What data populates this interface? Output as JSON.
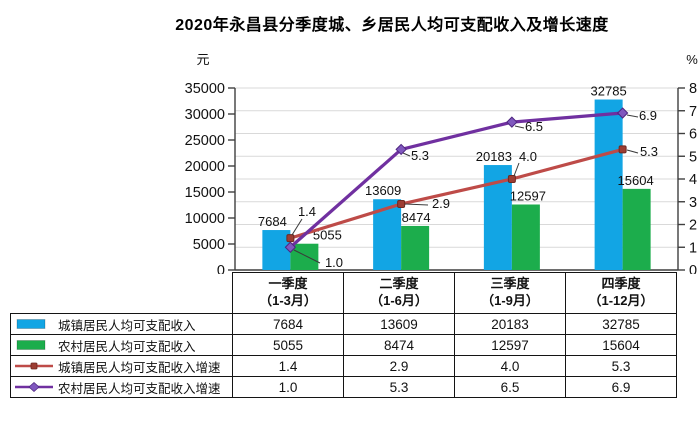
{
  "title": "2020年永昌县分季度城、乡居民人均可支配收入及增长速度",
  "chart_data": {
    "type": "bar+line",
    "title": "2020年永昌县分季度城、乡居民人均可支配收入及增长速度",
    "categories": [
      "一季度",
      "二季度",
      "三季度",
      "四季度"
    ],
    "category_sublabels": [
      "（1-3月）",
      "（1-6月）",
      "（1-9月）",
      "（1-12月）"
    ],
    "left_axis": {
      "unit": "元",
      "min": 0,
      "max": 35000,
      "step": 5000
    },
    "right_axis": {
      "unit": "%",
      "min": 0,
      "max": 8,
      "step": 1
    },
    "grid": "horizontal-right-axis-steps",
    "legend_position": "table-below-chart",
    "series": [
      {
        "name": "城镇居民人均可支配收入",
        "type": "bar",
        "axis": "left",
        "color": "#12A5E4",
        "values": [
          7684,
          13609,
          20183,
          32785
        ],
        "labels": [
          "7684",
          "13609",
          "20183",
          "32785"
        ]
      },
      {
        "name": "农村居民人均可支配收入",
        "type": "bar",
        "axis": "left",
        "color": "#1CAD4C",
        "values": [
          5055,
          8474,
          12597,
          15604
        ],
        "labels": [
          "5055",
          "8474",
          "12597",
          "15604"
        ]
      },
      {
        "name": "城镇居民人均可支配收入增速",
        "type": "line",
        "axis": "right",
        "color": "#BE4B48",
        "marker": "square",
        "marker_color": "#9C3D33",
        "values": [
          1.4,
          2.9,
          4.0,
          5.3
        ],
        "labels": [
          "1.4",
          "2.9",
          "4.0",
          "5.3"
        ]
      },
      {
        "name": "农村居民人均可支配收入增速",
        "type": "line",
        "axis": "right",
        "color": "#7030A0",
        "marker": "diamond",
        "marker_color": "#8058BE",
        "values": [
          1.0,
          5.3,
          6.5,
          6.9
        ],
        "labels": [
          "1.0",
          "5.3",
          "6.5",
          "6.9"
        ]
      }
    ]
  },
  "table": {
    "columns": [
      {
        "title": "一季度",
        "subtitle": "（1-3月）"
      },
      {
        "title": "二季度",
        "subtitle": "（1-6月）"
      },
      {
        "title": "三季度",
        "subtitle": "（1-9月）"
      },
      {
        "title": "四季度",
        "subtitle": "（1-12月）"
      }
    ],
    "rows": [
      {
        "icon": "bar",
        "color": "#12A5E4",
        "label": "城镇居民人均可支配收入",
        "values": [
          "7684",
          "13609",
          "20183",
          "32785"
        ]
      },
      {
        "icon": "bar",
        "color": "#1CAD4C",
        "label": "农村居民人均可支配收入",
        "values": [
          "5055",
          "8474",
          "12597",
          "15604"
        ]
      },
      {
        "icon": "line-square",
        "color": "#BE4B48",
        "marker_color": "#9C3D33",
        "label": "城镇居民人均可支配收入增速",
        "values": [
          "1.4",
          "2.9",
          "4.0",
          "5.3"
        ]
      },
      {
        "icon": "line-diamond",
        "color": "#7030A0",
        "marker_color": "#8058BE",
        "label": "农村居民人均可支配收入增速",
        "values": [
          "1.0",
          "5.3",
          "6.5",
          "6.9"
        ]
      }
    ]
  }
}
